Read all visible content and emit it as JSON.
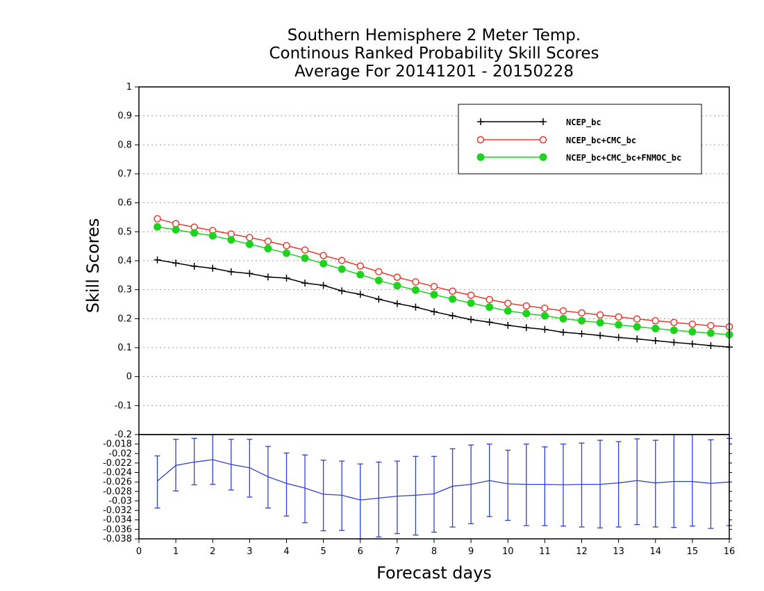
{
  "title": {
    "line1": "Southern Hemisphere 2 Meter Temp.",
    "line2": "Continous Ranked Probability Skill Scores",
    "line3": "Average For 20141201 - 20150228"
  },
  "xlabel": "Forecast days",
  "ylabel": "Skill Scores",
  "colors": {
    "ncep": "#000000",
    "ncep_cmc": "#e8392f",
    "ncep_cmc_fnmoc": "#1ed21e",
    "diff": "#2d3fd6",
    "grid": "#999999"
  },
  "chart_data": [
    {
      "type": "line",
      "panel": "upper",
      "xlim": [
        0,
        16
      ],
      "ylim": [
        -0.2,
        1
      ],
      "x_ticks": [
        "0",
        "1",
        "2",
        "3",
        "4",
        "5",
        "6",
        "7",
        "8",
        "9",
        "10",
        "11",
        "12",
        "13",
        "14",
        "15",
        "16"
      ],
      "y_ticks": [
        "-0.1",
        "0",
        "0.1",
        "0.2",
        "0.3",
        "0.4",
        "0.5",
        "0.6",
        "0.7",
        "0.8",
        "0.9",
        "1"
      ],
      "grid": true,
      "legend_position": "top-right",
      "x": [
        0.5,
        1,
        1.5,
        2,
        2.5,
        3,
        3.5,
        4,
        4.5,
        5,
        5.5,
        6,
        6.5,
        7,
        7.5,
        8,
        8.5,
        9,
        9.5,
        10,
        10.5,
        11,
        11.5,
        12,
        12.5,
        13,
        13.5,
        14,
        14.5,
        15,
        15.5,
        16
      ],
      "series": [
        {
          "name": "NCEP_bc",
          "marker": "plus",
          "values": [
            0.403,
            0.392,
            0.381,
            0.374,
            0.362,
            0.356,
            0.344,
            0.34,
            0.323,
            0.315,
            0.296,
            0.284,
            0.267,
            0.252,
            0.24,
            0.224,
            0.21,
            0.197,
            0.188,
            0.177,
            0.169,
            0.163,
            0.153,
            0.148,
            0.142,
            0.135,
            0.13,
            0.124,
            0.118,
            0.113,
            0.107,
            0.102
          ]
        },
        {
          "name": "NCEP_bc+CMC_bc",
          "marker": "open-circle",
          "values": [
            0.545,
            0.528,
            0.516,
            0.504,
            0.492,
            0.48,
            0.467,
            0.452,
            0.437,
            0.418,
            0.401,
            0.382,
            0.362,
            0.343,
            0.327,
            0.311,
            0.295,
            0.281,
            0.266,
            0.253,
            0.244,
            0.236,
            0.227,
            0.22,
            0.213,
            0.206,
            0.199,
            0.193,
            0.187,
            0.181,
            0.176,
            0.172
          ]
        },
        {
          "name": "NCEP_bc+CMC_bc+FNMOC_bc",
          "marker": "filled-circle",
          "values": [
            0.517,
            0.507,
            0.496,
            0.486,
            0.472,
            0.457,
            0.442,
            0.426,
            0.409,
            0.39,
            0.371,
            0.352,
            0.332,
            0.314,
            0.299,
            0.283,
            0.268,
            0.254,
            0.24,
            0.227,
            0.218,
            0.21,
            0.2,
            0.193,
            0.186,
            0.179,
            0.172,
            0.166,
            0.16,
            0.155,
            0.15,
            0.145
          ]
        }
      ]
    },
    {
      "type": "line",
      "panel": "lower",
      "xlim": [
        0,
        16
      ],
      "ylim": [
        -0.038,
        -0.016
      ],
      "y_ticks": [
        "-0.018",
        "-0.02",
        "-0.022",
        "-0.024",
        "-0.026",
        "-0.028",
        "-0.03",
        "-0.032",
        "-0.034",
        "-0.036",
        "-0.038"
      ],
      "x_ticks": [
        "0",
        "1",
        "2",
        "3",
        "4",
        "5",
        "6",
        "7",
        "8",
        "9",
        "10",
        "11",
        "12",
        "13",
        "14",
        "15",
        "16"
      ],
      "x": [
        0.5,
        1,
        1.5,
        2,
        2.5,
        3,
        3.5,
        4,
        4.5,
        5,
        5.5,
        6,
        6.5,
        7,
        7.5,
        8,
        8.5,
        9,
        9.5,
        10,
        10.5,
        11,
        11.5,
        12,
        12.5,
        13,
        13.5,
        14,
        14.5,
        15,
        15.5,
        16
      ],
      "mean": [
        -0.0258,
        -0.0225,
        -0.0218,
        -0.0213,
        -0.0223,
        -0.023,
        -0.0249,
        -0.0263,
        -0.0273,
        -0.0286,
        -0.0288,
        -0.0298,
        -0.0294,
        -0.029,
        -0.0288,
        -0.0285,
        -0.0269,
        -0.0265,
        -0.0257,
        -0.0264,
        -0.0265,
        -0.0265,
        -0.0266,
        -0.0265,
        -0.0265,
        -0.0262,
        -0.0257,
        -0.0262,
        -0.0259,
        -0.0259,
        -0.0263,
        -0.026
      ],
      "upper": [
        -0.0205,
        -0.017,
        -0.0168,
        -0.016,
        -0.017,
        -0.017,
        -0.0185,
        -0.0199,
        -0.0203,
        -0.0214,
        -0.0216,
        -0.0222,
        -0.0218,
        -0.0216,
        -0.0206,
        -0.0206,
        -0.019,
        -0.0182,
        -0.018,
        -0.0193,
        -0.018,
        -0.0186,
        -0.018,
        -0.0178,
        -0.0172,
        -0.0175,
        -0.0169,
        -0.0172,
        -0.016,
        -0.016,
        -0.0171,
        -0.0168
      ],
      "lower": [
        -0.0315,
        -0.0279,
        -0.0266,
        -0.0265,
        -0.0277,
        -0.0292,
        -0.0315,
        -0.0332,
        -0.0346,
        -0.0363,
        -0.0362,
        -0.038,
        -0.0376,
        -0.0369,
        -0.0372,
        -0.0366,
        -0.0355,
        -0.0348,
        -0.0333,
        -0.0341,
        -0.0352,
        -0.0352,
        -0.0353,
        -0.0355,
        -0.0357,
        -0.0355,
        -0.035,
        -0.0355,
        -0.0356,
        -0.0353,
        -0.0358,
        -0.0352
      ]
    }
  ]
}
